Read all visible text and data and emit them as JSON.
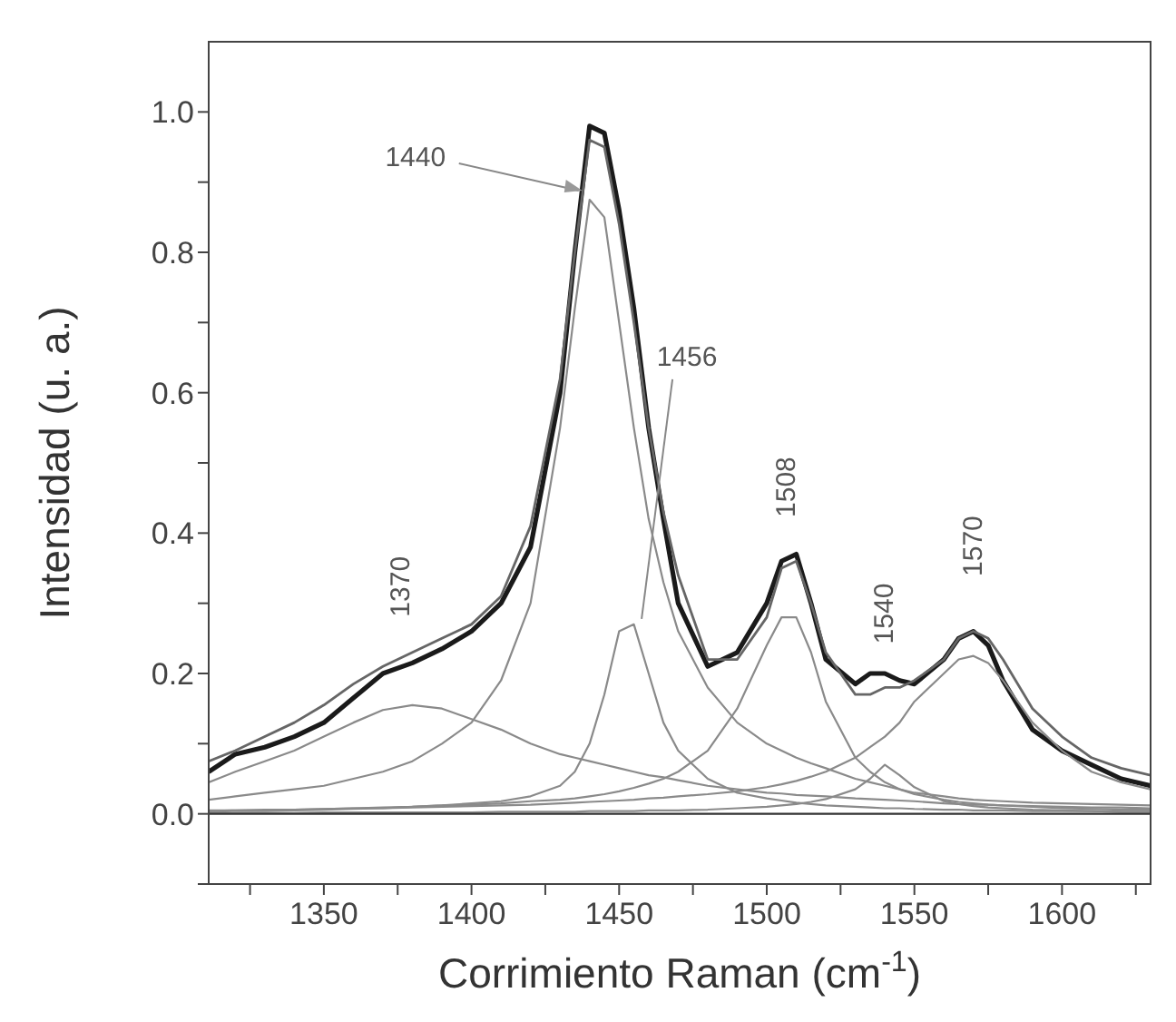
{
  "chart_data": {
    "type": "line",
    "xlabel": "Corrimiento Raman (cm$^{-1}$)",
    "ylabel": "Intensidad (u. a.)",
    "x": [
      1311,
      1320,
      1330,
      1340,
      1350,
      1360,
      1370,
      1380,
      1390,
      1400,
      1410,
      1420,
      1430,
      1435,
      1440,
      1445,
      1450,
      1455,
      1460,
      1465,
      1470,
      1480,
      1490,
      1500,
      1505,
      1510,
      1515,
      1520,
      1530,
      1535,
      1540,
      1545,
      1550,
      1560,
      1565,
      1570,
      1575,
      1580,
      1590,
      1600,
      1610,
      1620,
      1630
    ],
    "series": [
      {
        "color": "#1a1a1a",
        "values": [
          0.06,
          0.085,
          0.095,
          0.11,
          0.13,
          0.165,
          0.2,
          0.215,
          0.235,
          0.26,
          0.3,
          0.38,
          0.6,
          0.8,
          0.98,
          0.97,
          0.86,
          0.72,
          0.55,
          0.42,
          0.3,
          0.21,
          0.23,
          0.3,
          0.36,
          0.37,
          0.3,
          0.22,
          0.185,
          0.2,
          0.2,
          0.19,
          0.185,
          0.22,
          0.25,
          0.26,
          0.24,
          0.19,
          0.12,
          0.09,
          0.07,
          0.05,
          0.04
        ]
      },
      {
        "color": "#666666",
        "values": [
          0.075,
          0.09,
          0.11,
          0.13,
          0.155,
          0.185,
          0.21,
          0.23,
          0.25,
          0.27,
          0.31,
          0.41,
          0.62,
          0.8,
          0.96,
          0.95,
          0.84,
          0.7,
          0.55,
          0.43,
          0.34,
          0.22,
          0.22,
          0.28,
          0.35,
          0.36,
          0.3,
          0.23,
          0.17,
          0.17,
          0.18,
          0.18,
          0.19,
          0.22,
          0.25,
          0.26,
          0.25,
          0.22,
          0.15,
          0.11,
          0.08,
          0.065,
          0.055
        ]
      },
      {
        "color": "#8a8a8a",
        "values": [
          0.045,
          0.06,
          0.075,
          0.09,
          0.11,
          0.13,
          0.148,
          0.155,
          0.15,
          0.135,
          0.12,
          0.1,
          0.085,
          0.08,
          0.075,
          0.07,
          0.065,
          0.06,
          0.055,
          0.052,
          0.048,
          0.04,
          0.035,
          0.03,
          0.029,
          0.027,
          0.026,
          0.025,
          0.022,
          0.021,
          0.02,
          0.019,
          0.018,
          0.015,
          0.014,
          0.013,
          0.013,
          0.012,
          0.011,
          0.01,
          0.009,
          0.009,
          0.008
        ]
      },
      {
        "color": "#8a8a8a",
        "values": [
          0.02,
          0.025,
          0.03,
          0.035,
          0.04,
          0.05,
          0.06,
          0.075,
          0.1,
          0.13,
          0.19,
          0.3,
          0.55,
          0.72,
          0.875,
          0.85,
          0.7,
          0.55,
          0.42,
          0.33,
          0.26,
          0.18,
          0.13,
          0.1,
          0.09,
          0.08,
          0.072,
          0.065,
          0.05,
          0.045,
          0.04,
          0.035,
          0.03,
          0.025,
          0.022,
          0.02,
          0.019,
          0.018,
          0.016,
          0.015,
          0.014,
          0.013,
          0.012
        ]
      },
      {
        "color": "#8a8a8a",
        "values": [
          0.003,
          0.004,
          0.004,
          0.005,
          0.006,
          0.007,
          0.008,
          0.01,
          0.012,
          0.015,
          0.018,
          0.025,
          0.04,
          0.06,
          0.1,
          0.17,
          0.26,
          0.27,
          0.2,
          0.13,
          0.09,
          0.05,
          0.03,
          0.022,
          0.019,
          0.016,
          0.014,
          0.012,
          0.01,
          0.009,
          0.008,
          0.008,
          0.007,
          0.006,
          0.006,
          0.005,
          0.005,
          0.005,
          0.004,
          0.004,
          0.004,
          0.003,
          0.003
        ]
      },
      {
        "color": "#8a8a8a",
        "values": [
          0.004,
          0.005,
          0.005,
          0.006,
          0.007,
          0.008,
          0.009,
          0.01,
          0.012,
          0.013,
          0.015,
          0.018,
          0.02,
          0.022,
          0.025,
          0.028,
          0.032,
          0.037,
          0.043,
          0.05,
          0.06,
          0.09,
          0.15,
          0.24,
          0.28,
          0.28,
          0.23,
          0.16,
          0.08,
          0.06,
          0.045,
          0.035,
          0.028,
          0.02,
          0.017,
          0.015,
          0.013,
          0.012,
          0.01,
          0.008,
          0.007,
          0.006,
          0.006
        ]
      },
      {
        "color": "#8a8a8a",
        "values": [
          0.001,
          0.001,
          0.001,
          0.001,
          0.002,
          0.002,
          0.002,
          0.002,
          0.002,
          0.002,
          0.003,
          0.003,
          0.003,
          0.003,
          0.004,
          0.004,
          0.004,
          0.004,
          0.005,
          0.005,
          0.005,
          0.006,
          0.008,
          0.01,
          0.012,
          0.014,
          0.017,
          0.021,
          0.035,
          0.05,
          0.07,
          0.055,
          0.038,
          0.018,
          0.014,
          0.011,
          0.009,
          0.008,
          0.006,
          0.005,
          0.004,
          0.003,
          0.003
        ]
      },
      {
        "color": "#8a8a8a",
        "values": [
          0.005,
          0.005,
          0.006,
          0.006,
          0.007,
          0.008,
          0.008,
          0.009,
          0.01,
          0.011,
          0.012,
          0.013,
          0.015,
          0.016,
          0.017,
          0.018,
          0.019,
          0.02,
          0.022,
          0.023,
          0.025,
          0.028,
          0.032,
          0.038,
          0.042,
          0.047,
          0.053,
          0.06,
          0.08,
          0.095,
          0.11,
          0.13,
          0.16,
          0.2,
          0.22,
          0.225,
          0.215,
          0.19,
          0.13,
          0.09,
          0.06,
          0.045,
          0.035
        ]
      },
      {
        "color": "#333333",
        "x": [
          1311,
          1630
        ],
        "values": [
          0,
          0
        ]
      }
    ],
    "xlim": [
      1311,
      1630
    ],
    "ylim": [
      -0.1,
      1.1
    ],
    "xticks": [
      {
        "value": 1325,
        "label": null
      },
      1350,
      {
        "value": 1375,
        "label": null
      },
      1400,
      {
        "value": 1425,
        "label": null
      },
      1450,
      {
        "value": 1475,
        "label": null
      },
      1500,
      {
        "value": 1525,
        "label": null
      },
      1550,
      {
        "value": 1575,
        "label": null
      },
      1600,
      {
        "value": 1625,
        "label": null
      }
    ],
    "yticks": [
      {
        "value": -0.1,
        "label": null
      },
      {
        "value": 0,
        "label": "0.0"
      },
      {
        "value": 0.1,
        "label": null
      },
      {
        "value": 0.2,
        "label": "0.2"
      },
      {
        "value": 0.3,
        "label": null
      },
      {
        "value": 0.4,
        "label": "0.4"
      },
      {
        "value": 0.5,
        "label": null
      },
      {
        "value": 0.6,
        "label": "0.6"
      },
      {
        "value": 0.7,
        "label": null
      },
      {
        "value": 0.8,
        "label": "0.8"
      },
      {
        "value": 0.9,
        "label": null
      },
      {
        "value": 1.0,
        "label": "1.0"
      }
    ],
    "annotations": [
      {
        "text": "1370",
        "x": 1370,
        "y": 0.21
      },
      {
        "text": "1440",
        "x": 1440,
        "y": 0.875
      },
      {
        "text": "1456",
        "x": 1457,
        "y": 0.27
      },
      {
        "text": "1508",
        "x": 1508,
        "y": 0.37
      },
      {
        "text": "1540",
        "x": 1540,
        "y": 0.2
      },
      {
        "text": "1570",
        "x": 1570,
        "y": 0.26
      }
    ]
  }
}
